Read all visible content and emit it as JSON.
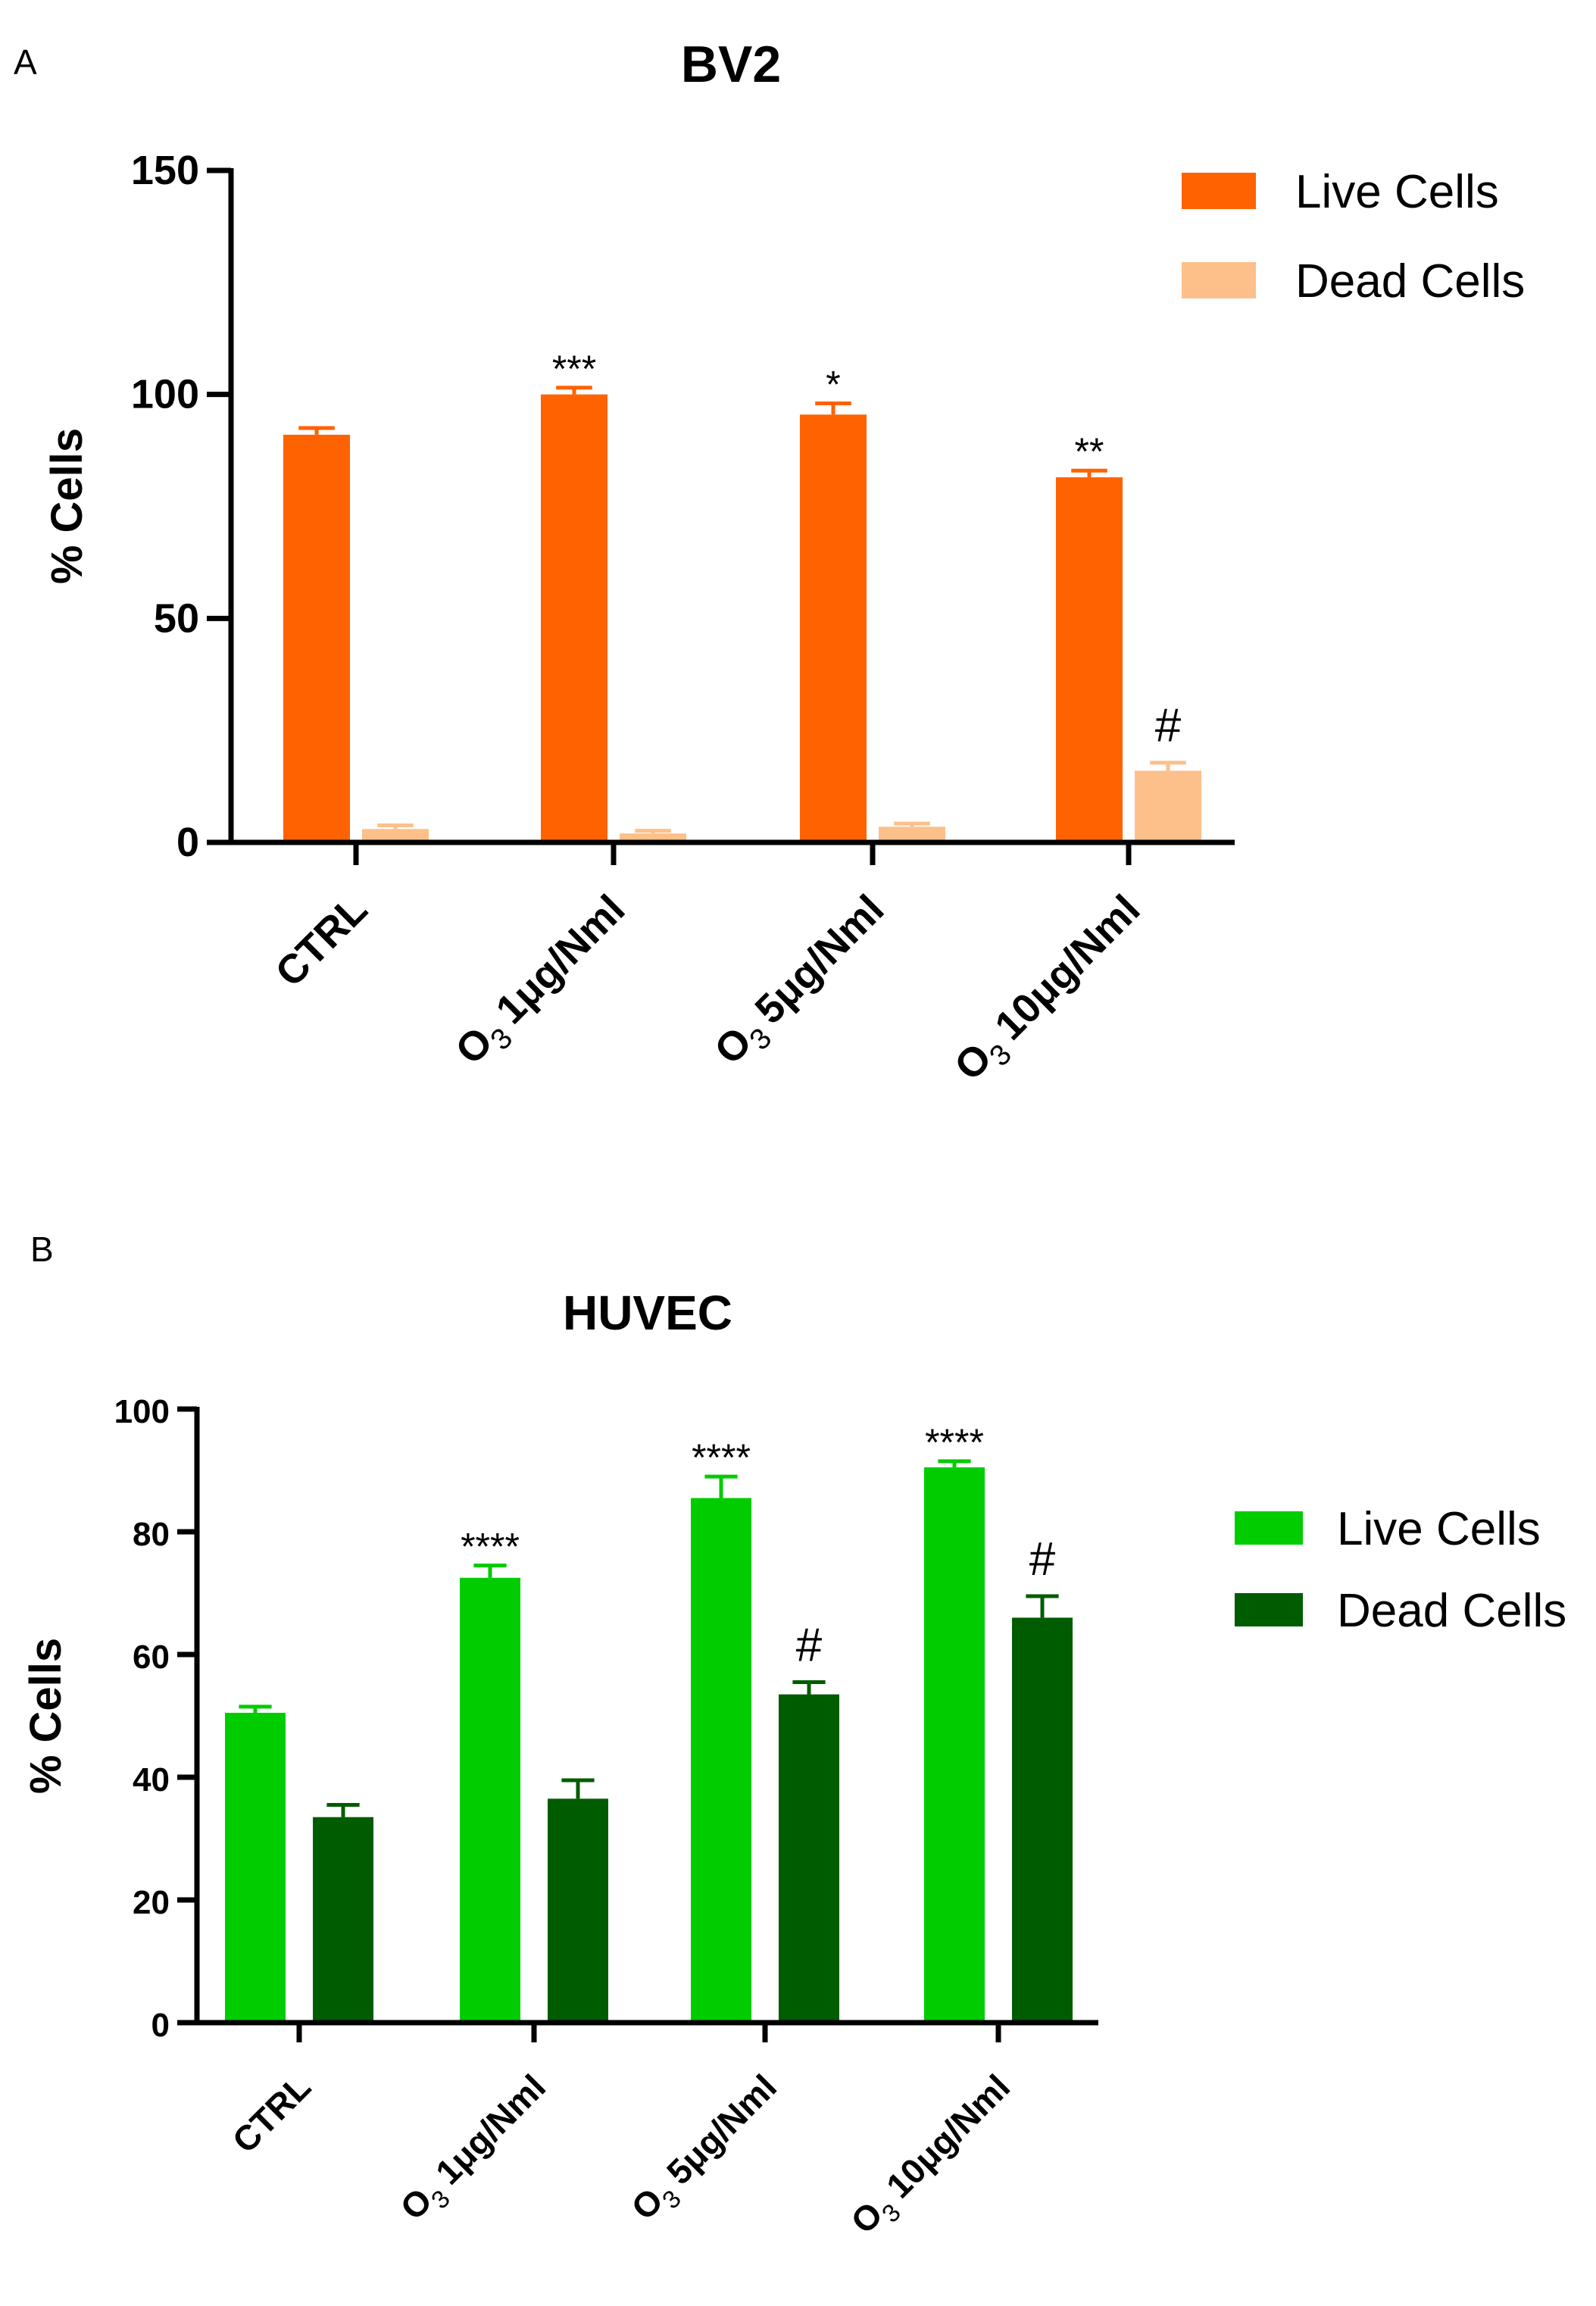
{
  "chart_data": [
    {
      "panel": "A",
      "type": "bar",
      "title": "BV2",
      "xlabel": "",
      "ylabel": "% Cells",
      "ylim": [
        0,
        150
      ],
      "yticks": [
        "0",
        "50",
        "100",
        "150"
      ],
      "categories": [
        "CTRL",
        "1μg/Nml",
        "5μg/Nml",
        "10μg/Nml"
      ],
      "category_prefix": "O",
      "category_prefix_sub": "3",
      "legend_position": "top-right",
      "series": [
        {
          "name": "Live Cells",
          "color": "#ff6200",
          "values": [
            91,
            100,
            95.5,
            81.5
          ],
          "errors": [
            1.5,
            1.5,
            2.5,
            1.5
          ],
          "annotations": [
            "",
            "***",
            "*",
            "**"
          ]
        },
        {
          "name": "Dead Cells",
          "color": "#fdc08a",
          "values": [
            3,
            2,
            3.5,
            16
          ],
          "errors": [
            0.8,
            0.6,
            0.7,
            1.8
          ],
          "annotations": [
            "",
            "",
            "",
            "#"
          ]
        }
      ]
    },
    {
      "panel": "B",
      "type": "bar",
      "title": "HUVEC",
      "xlabel": "",
      "ylabel": "% Cells",
      "ylim": [
        0,
        100
      ],
      "yticks": [
        "0",
        "20",
        "40",
        "60",
        "80",
        "100"
      ],
      "categories": [
        "CTRL",
        "1μg/Nml",
        "5μg/Nml",
        "10μg/Nml"
      ],
      "category_prefix": "O",
      "category_prefix_sub": "3",
      "legend_position": "right",
      "series": [
        {
          "name": "Live Cells",
          "color": "#00cc00",
          "values": [
            50.5,
            72.5,
            85.5,
            90.5
          ],
          "errors": [
            1,
            2,
            3.5,
            1
          ],
          "annotations": [
            "",
            "****",
            "****",
            "****"
          ]
        },
        {
          "name": "Dead Cells",
          "color": "#005c00",
          "values": [
            33.5,
            36.5,
            53.5,
            66
          ],
          "errors": [
            2,
            3,
            2,
            3.5
          ],
          "annotations": [
            "",
            "",
            "#",
            "#"
          ]
        }
      ]
    }
  ]
}
